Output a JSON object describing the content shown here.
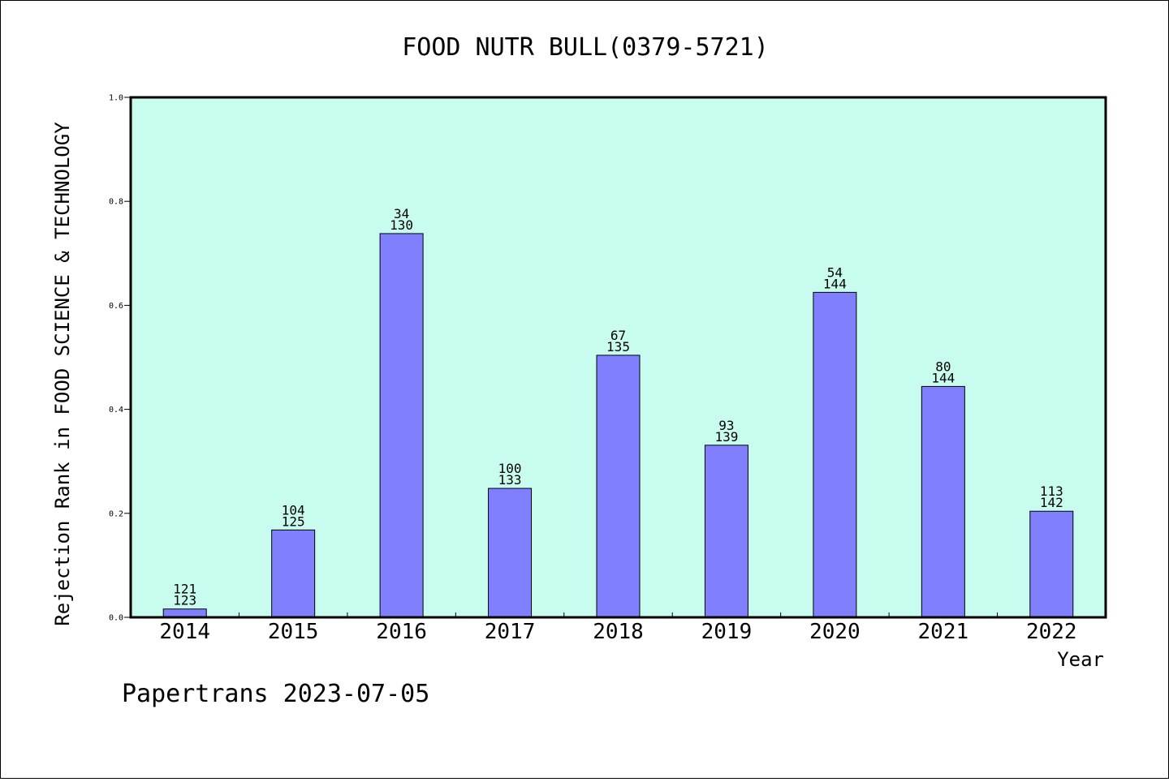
{
  "chart_data": {
    "type": "bar",
    "title": "FOOD NUTR BULL(0379-5721)",
    "xlabel": "Year",
    "ylabel": "Rejection Rank in FOOD SCIENCE & TECHNOLOGY",
    "ylim": [
      0,
      1.0
    ],
    "yticks": [
      "0.0",
      "0.2",
      "0.4",
      "0.6",
      "0.8",
      "1.0"
    ],
    "categories": [
      "2014",
      "2015",
      "2016",
      "2017",
      "2018",
      "2019",
      "2020",
      "2021",
      "2022"
    ],
    "values": [
      0.016,
      0.168,
      0.738,
      0.248,
      0.504,
      0.331,
      0.625,
      0.444,
      0.204
    ],
    "labels_top": [
      "121",
      "104",
      "34",
      "100",
      "67",
      "93",
      "54",
      "80",
      "113"
    ],
    "labels_bottom": [
      "123",
      "125",
      "130",
      "133",
      "135",
      "139",
      "144",
      "144",
      "142"
    ],
    "grid": false,
    "bar_color": "#8080ff",
    "plot_background": "#c8fcee"
  },
  "footer": "Papertrans 2023-07-05"
}
